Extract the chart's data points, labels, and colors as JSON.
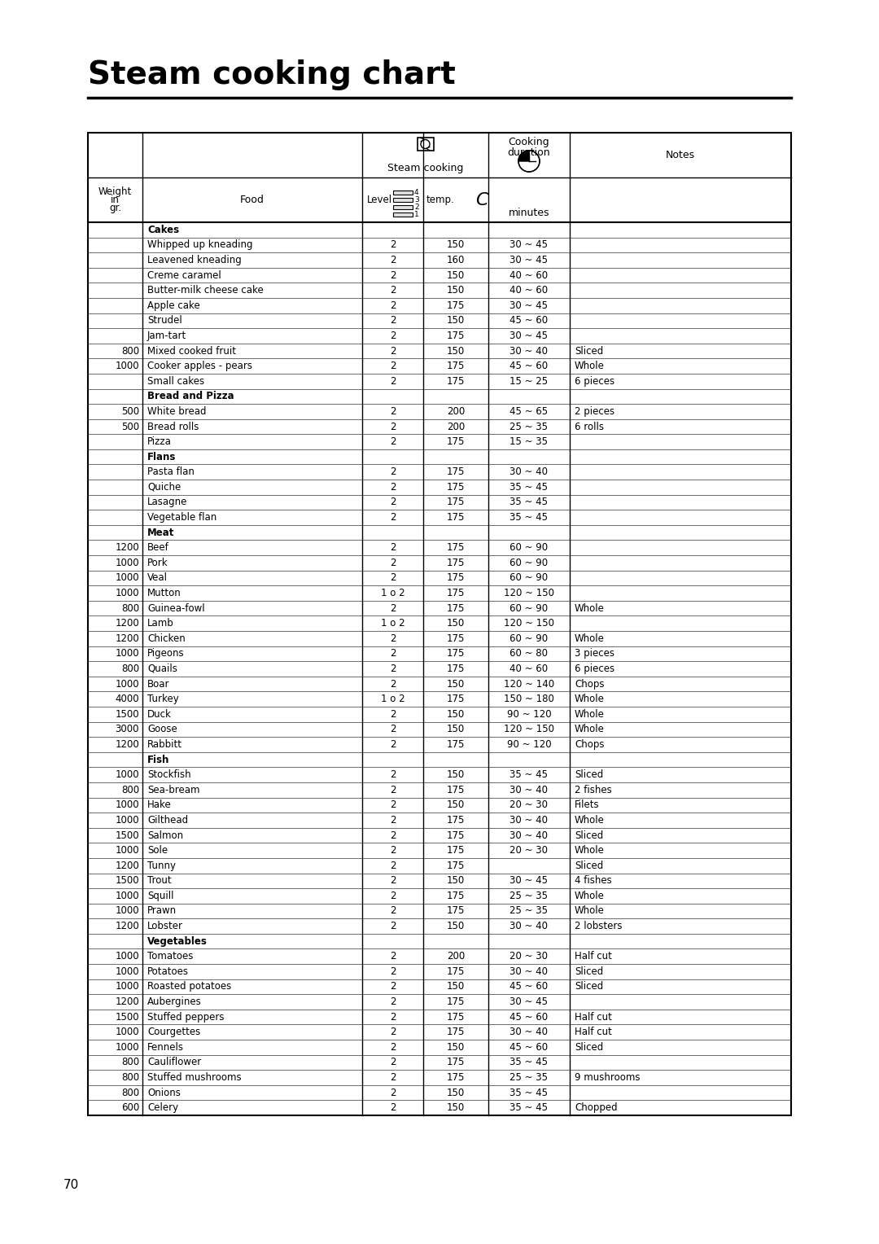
{
  "title": "Steam cooking chart",
  "page_number": "70",
  "rows": [
    [
      "",
      "Cakes",
      "",
      "",
      "",
      ""
    ],
    [
      "",
      "Whipped up kneading",
      "2",
      "150",
      "30 ~ 45",
      ""
    ],
    [
      "",
      "Leavened kneading",
      "2",
      "160",
      "30 ~ 45",
      ""
    ],
    [
      "",
      "Creme caramel",
      "2",
      "150",
      "40 ~ 60",
      ""
    ],
    [
      "",
      "Butter-milk cheese cake",
      "2",
      "150",
      "40 ~ 60",
      ""
    ],
    [
      "",
      "Apple cake",
      "2",
      "175",
      "30 ~ 45",
      ""
    ],
    [
      "",
      "Strudel",
      "2",
      "150",
      "45 ~ 60",
      ""
    ],
    [
      "",
      "Jam-tart",
      "2",
      "175",
      "30 ~ 45",
      ""
    ],
    [
      "800",
      "Mixed cooked fruit",
      "2",
      "150",
      "30 ~ 40",
      "Sliced"
    ],
    [
      "1000",
      "Cooker apples - pears",
      "2",
      "175",
      "45 ~ 60",
      "Whole"
    ],
    [
      "",
      "Small cakes",
      "2",
      "175",
      "15 ~ 25",
      "6 pieces"
    ],
    [
      "",
      "Bread and Pizza",
      "",
      "",
      "",
      ""
    ],
    [
      "500",
      "White bread",
      "2",
      "200",
      "45 ~ 65",
      "2 pieces"
    ],
    [
      "500",
      "Bread rolls",
      "2",
      "200",
      "25 ~ 35",
      "6 rolls"
    ],
    [
      "",
      "Pizza",
      "2",
      "175",
      "15 ~ 35",
      ""
    ],
    [
      "",
      "Flans",
      "",
      "",
      "",
      ""
    ],
    [
      "",
      "Pasta flan",
      "2",
      "175",
      "30 ~ 40",
      ""
    ],
    [
      "",
      "Quiche",
      "2",
      "175",
      "35 ~ 45",
      ""
    ],
    [
      "",
      "Lasagne",
      "2",
      "175",
      "35 ~ 45",
      ""
    ],
    [
      "",
      "Vegetable flan",
      "2",
      "175",
      "35 ~ 45",
      ""
    ],
    [
      "",
      "Meat",
      "",
      "",
      "",
      ""
    ],
    [
      "1200",
      "Beef",
      "2",
      "175",
      "60 ~ 90",
      ""
    ],
    [
      "1000",
      "Pork",
      "2",
      "175",
      "60 ~ 90",
      ""
    ],
    [
      "1000",
      "Veal",
      "2",
      "175",
      "60 ~ 90",
      ""
    ],
    [
      "1000",
      "Mutton",
      "1 o 2",
      "175",
      "120 ~ 150",
      ""
    ],
    [
      "800",
      "Guinea-fowl",
      "2",
      "175",
      "60 ~ 90",
      "Whole"
    ],
    [
      "1200",
      "Lamb",
      "1 o 2",
      "150",
      "120 ~ 150",
      ""
    ],
    [
      "1200",
      "Chicken",
      "2",
      "175",
      "60 ~ 90",
      "Whole"
    ],
    [
      "1000",
      "Pigeons",
      "2",
      "175",
      "60 ~ 80",
      "3 pieces"
    ],
    [
      "800",
      "Quails",
      "2",
      "175",
      "40 ~ 60",
      "6 pieces"
    ],
    [
      "1000",
      "Boar",
      "2",
      "150",
      "120 ~ 140",
      "Chops"
    ],
    [
      "4000",
      "Turkey",
      "1 o 2",
      "175",
      "150 ~ 180",
      "Whole"
    ],
    [
      "1500",
      "Duck",
      "2",
      "150",
      "90 ~ 120",
      "Whole"
    ],
    [
      "3000",
      "Goose",
      "2",
      "150",
      "120 ~ 150",
      "Whole"
    ],
    [
      "1200",
      "Rabbitt",
      "2",
      "175",
      "90 ~ 120",
      "Chops"
    ],
    [
      "",
      "Fish",
      "",
      "",
      "",
      ""
    ],
    [
      "1000",
      "Stockfish",
      "2",
      "150",
      "35 ~ 45",
      "Sliced"
    ],
    [
      "800",
      "Sea-bream",
      "2",
      "175",
      "30 ~ 40",
      "2 fishes"
    ],
    [
      "1000",
      "Hake",
      "2",
      "150",
      "20 ~ 30",
      "Filets"
    ],
    [
      "1000",
      "Gilthead",
      "2",
      "175",
      "30 ~ 40",
      "Whole"
    ],
    [
      "1500",
      "Salmon",
      "2",
      "175",
      "30 ~ 40",
      "Sliced"
    ],
    [
      "1000",
      "Sole",
      "2",
      "175",
      "20 ~ 30",
      "Whole"
    ],
    [
      "1200",
      "Tunny",
      "2",
      "175",
      "",
      "Sliced"
    ],
    [
      "1500",
      "Trout",
      "2",
      "150",
      "30 ~ 45",
      "4 fishes"
    ],
    [
      "1000",
      "Squill",
      "2",
      "175",
      "25 ~ 35",
      "Whole"
    ],
    [
      "1000",
      "Prawn",
      "2",
      "175",
      "25 ~ 35",
      "Whole"
    ],
    [
      "1200",
      "Lobster",
      "2",
      "150",
      "30 ~ 40",
      "2 lobsters"
    ],
    [
      "",
      "Vegetables",
      "",
      "",
      "",
      ""
    ],
    [
      "1000",
      "Tomatoes",
      "2",
      "200",
      "20 ~ 30",
      "Half cut"
    ],
    [
      "1000",
      "Potatoes",
      "2",
      "175",
      "30 ~ 40",
      "Sliced"
    ],
    [
      "1000",
      "Roasted potatoes",
      "2",
      "150",
      "45 ~ 60",
      "Sliced"
    ],
    [
      "1200",
      "Aubergines",
      "2",
      "175",
      "30 ~ 45",
      ""
    ],
    [
      "1500",
      "Stuffed peppers",
      "2",
      "175",
      "45 ~ 60",
      "Half cut"
    ],
    [
      "1000",
      "Courgettes",
      "2",
      "175",
      "30 ~ 40",
      "Half cut"
    ],
    [
      "1000",
      "Fennels",
      "2",
      "150",
      "45 ~ 60",
      "Sliced"
    ],
    [
      "800",
      "Cauliflower",
      "2",
      "175",
      "35 ~ 45",
      ""
    ],
    [
      "800",
      "Stuffed mushrooms",
      "2",
      "175",
      "25 ~ 35",
      "9 mushrooms"
    ],
    [
      "800",
      "Onions",
      "2",
      "150",
      "35 ~ 45",
      ""
    ],
    [
      "600",
      "Celery",
      "2",
      "150",
      "35 ~ 45",
      "Chopped"
    ]
  ],
  "section_rows": [
    0,
    11,
    15,
    20,
    35,
    47
  ],
  "bg_color": "#ffffff",
  "text_color": "#000000",
  "border_color": "#000000"
}
